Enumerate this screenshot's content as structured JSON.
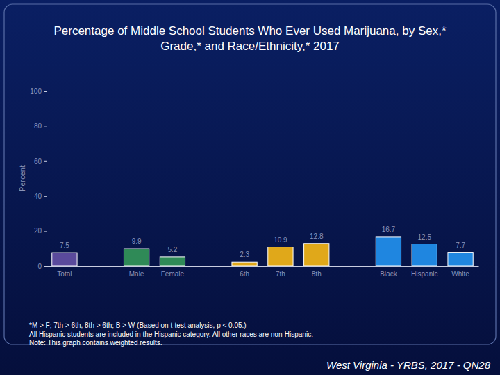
{
  "chart_data": {
    "type": "bar",
    "title": "Percentage of Middle School Students Who Ever Used Marijuana, by Sex,* Grade,* and Race/Ethnicity,* 2017",
    "y_label": "Percent",
    "categories": [
      "Total",
      null,
      "Male",
      "Female",
      null,
      "6th",
      "7th",
      "8th",
      null,
      "Black",
      "Hispanic",
      "White"
    ],
    "values": [
      7.5,
      null,
      9.9,
      5.2,
      null,
      2.3,
      10.9,
      12.8,
      null,
      16.7,
      12.5,
      7.7
    ],
    "colors": [
      "#5a4a9c",
      null,
      "#2f8a57",
      "#2f8a57",
      null,
      "#e0a81a",
      "#e0a81a",
      "#e0a81a",
      null,
      "#1f86e0",
      "#1f86e0",
      "#1f86e0"
    ],
    "ylim": [
      0,
      100
    ],
    "yticks": [
      0,
      20,
      40,
      60,
      80,
      100
    ],
    "grid": false,
    "data_labels": true,
    "notes": [
      "*M > F; 7th > 6th, 8th > 6th; B > W (Based on t-test analysis, p < 0.05.)",
      "All Hispanic students are included in the Hispanic category.  All other races are non-Hispanic.",
      "Note: This graph contains weighted results."
    ],
    "source": "West Virginia - YRBS, 2017 - QN28"
  }
}
